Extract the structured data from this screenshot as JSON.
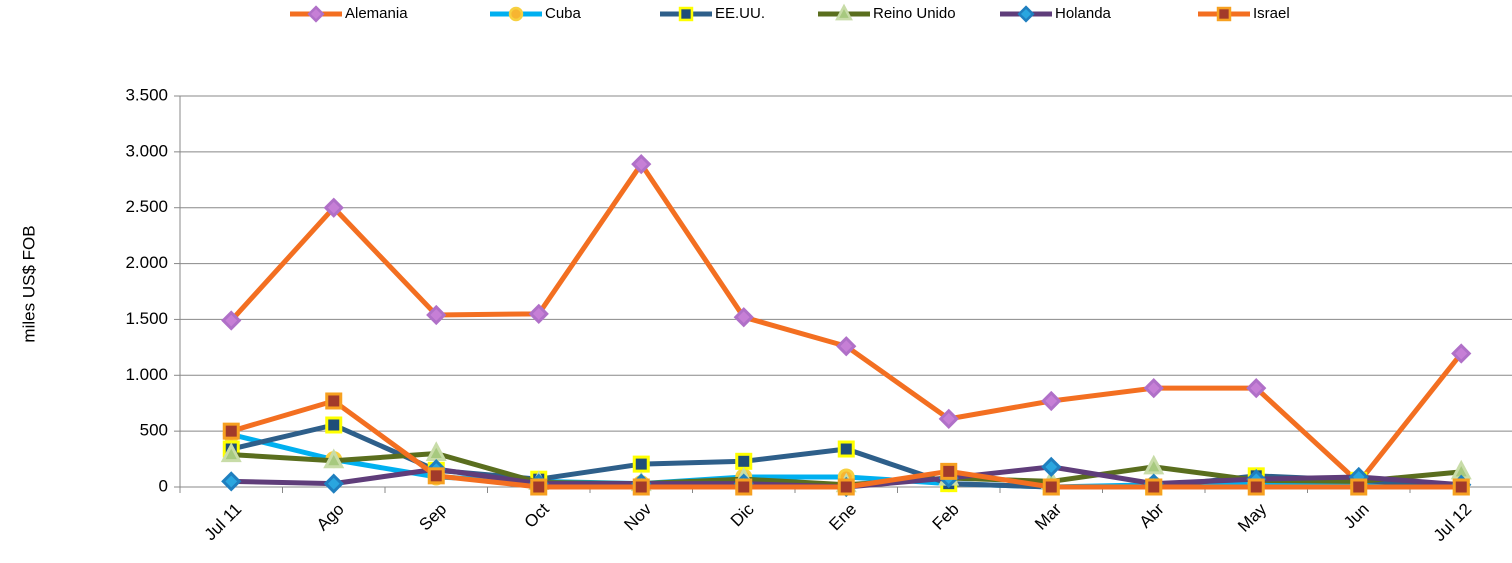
{
  "chart_data": {
    "type": "line",
    "y_label": "miles US$ FOB",
    "categories": [
      "Jul 11",
      "Ago",
      "Sep",
      "Oct",
      "Nov",
      "Dic",
      "Ene",
      "Feb",
      "Mar",
      "Abr",
      "May",
      "Jun",
      "Jul 12"
    ],
    "ylim": [
      0,
      3500
    ],
    "yticks": [
      0,
      500,
      {
        "value": 1000,
        "label": "1.000"
      },
      {
        "value": 1500,
        "label": "1.500"
      },
      {
        "value": 2000,
        "label": "2.000"
      },
      {
        "value": 2500,
        "label": "2.500"
      },
      {
        "value": 3000,
        "label": "3.000"
      },
      {
        "value": 3500,
        "label": "3.500"
      }
    ],
    "grid": true,
    "legend": "top",
    "series": [
      {
        "name": "Alemania",
        "color": "#f36f21",
        "marker": "diamond",
        "marker_color": "#c67fd6",
        "marker_edge": "#b070c8",
        "values": [
          1490,
          2500,
          1540,
          1550,
          2890,
          1520,
          1260,
          610,
          770,
          885,
          885,
          40,
          1195
        ]
      },
      {
        "name": "Cuba",
        "color": "#00b0f0",
        "marker": "circle",
        "marker_color": "#f7b531",
        "marker_edge": "#f7d040",
        "values": [
          470,
          245,
          90,
          50,
          30,
          90,
          90,
          30,
          0,
          20,
          30,
          20,
          20
        ]
      },
      {
        "name": "EE.UU.",
        "color": "#2e5f8a",
        "marker": "square",
        "marker_color": "#1f4e79",
        "marker_edge": "#ffff00",
        "values": [
          340,
          555,
          150,
          70,
          205,
          230,
          340,
          30,
          0,
          0,
          100,
          60,
          0
        ]
      },
      {
        "name": "Reino Unido",
        "color": "#5a6e1e",
        "marker": "triangle",
        "marker_color": "#a7c97f",
        "marker_edge": "#c8dca8",
        "values": [
          290,
          235,
          300,
          40,
          30,
          70,
          20,
          80,
          50,
          180,
          60,
          50,
          135
        ]
      },
      {
        "name": "Holanda",
        "color": "#5f3d7a",
        "marker": "diamond",
        "marker_color": "#2aa6df",
        "marker_edge": "#1f7fbf",
        "values": [
          50,
          30,
          160,
          30,
          30,
          30,
          0,
          80,
          180,
          30,
          70,
          90,
          20
        ]
      },
      {
        "name": "Israel",
        "color": "#f36f21",
        "marker": "square",
        "marker_color": "#a23a2a",
        "marker_edge": "#f7a020",
        "values": [
          500,
          770,
          100,
          0,
          0,
          0,
          0,
          140,
          0,
          0,
          0,
          0,
          0
        ]
      }
    ]
  }
}
